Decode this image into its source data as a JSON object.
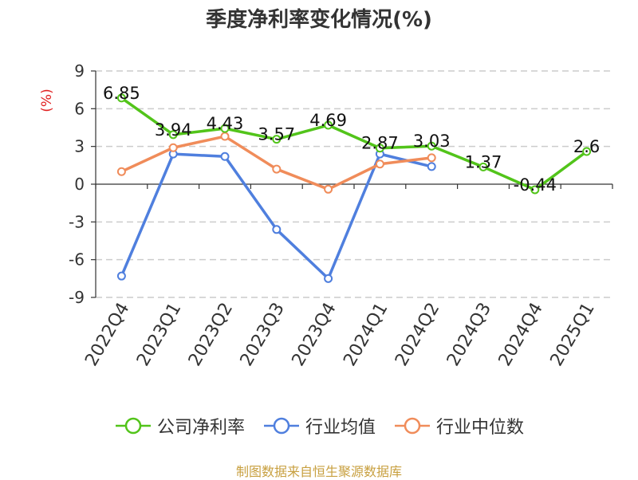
{
  "title": "季度净利率变化情况(%)",
  "source_note": "制图数据来自恒生聚源数据库",
  "chart_data": {
    "type": "line",
    "title": "季度净利率变化情况(%)",
    "ylabel": "(%)",
    "ylim": [
      -9,
      9
    ],
    "yticks": [
      9,
      6,
      3,
      0,
      -3,
      -6,
      -9
    ],
    "grid": true,
    "legend_position": "bottom",
    "categories": [
      "2022Q4",
      "2023Q1",
      "2023Q2",
      "2023Q3",
      "2023Q4",
      "2024Q1",
      "2024Q2",
      "2024Q3",
      "2024Q4",
      "2025Q1"
    ],
    "series": [
      {
        "name": "公司净利率",
        "color": "#52c41a",
        "show_labels": true,
        "values": [
          6.85,
          3.94,
          4.43,
          3.57,
          4.69,
          2.87,
          3.03,
          1.37,
          -0.44,
          2.6
        ]
      },
      {
        "name": "行业均值",
        "color": "#4f7fde",
        "show_labels": false,
        "values": [
          -7.3,
          2.4,
          2.2,
          -3.6,
          -7.5,
          2.4,
          1.4,
          null,
          null,
          null
        ]
      },
      {
        "name": "行业中位数",
        "color": "#f08c5a",
        "show_labels": false,
        "values": [
          1.0,
          2.9,
          3.8,
          1.2,
          -0.4,
          1.6,
          2.1,
          null,
          null,
          null
        ]
      }
    ]
  }
}
